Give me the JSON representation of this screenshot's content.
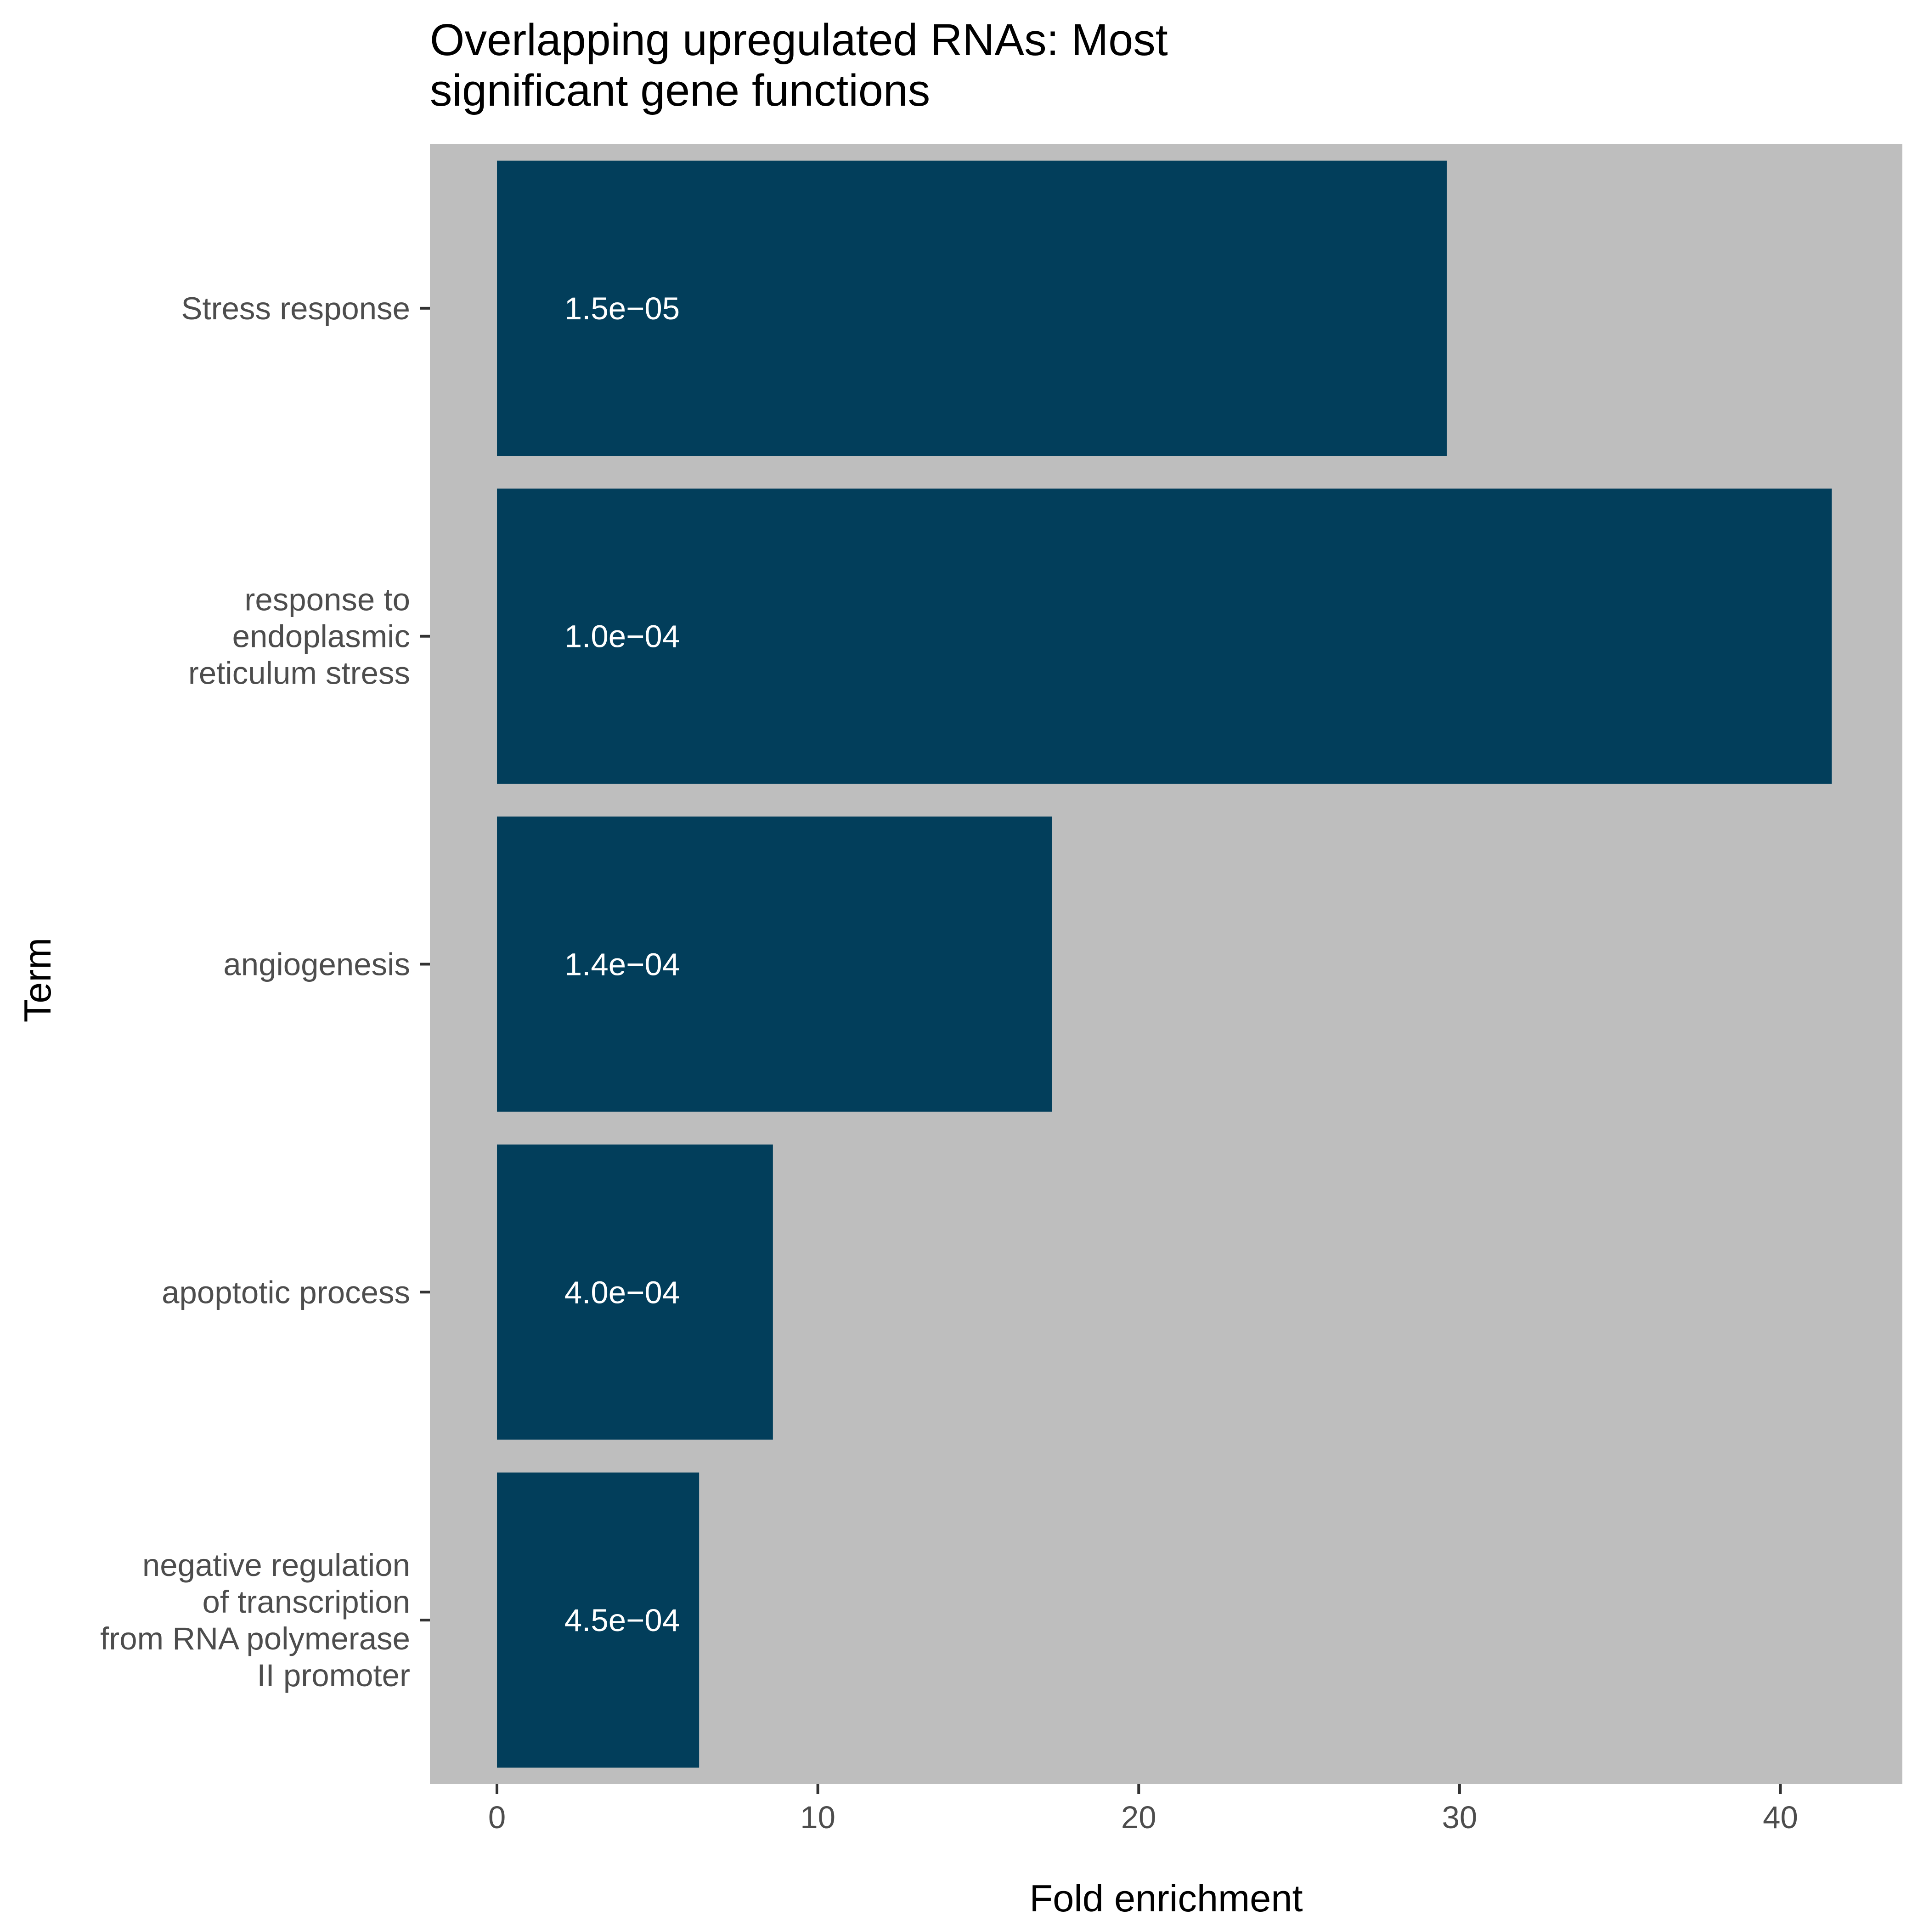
{
  "chart_data": {
    "type": "bar",
    "orientation": "horizontal",
    "title_lines": [
      "Overlapping upregulated RNAs: Most",
      "significant gene functions"
    ],
    "xlabel": "Fold enrichment",
    "ylabel": "Term",
    "xlim": [
      -2.09,
      43.8
    ],
    "x_ticks": [
      0,
      10,
      20,
      30,
      40
    ],
    "categories": [
      {
        "name": "Stress response",
        "lines": [
          "Stress response"
        ]
      },
      {
        "name": "response to endoplasmic reticulum stress",
        "lines": [
          "response to",
          "endoplasmic",
          "reticulum stress"
        ]
      },
      {
        "name": "angiogenesis",
        "lines": [
          "angiogenesis"
        ]
      },
      {
        "name": "apoptotic process",
        "lines": [
          "apoptotic process"
        ]
      },
      {
        "name": "negative regulation of transcription from RNA polymerase II promoter",
        "lines": [
          "negative regulation",
          "of transcription",
          "from RNA polymerase",
          "II promoter"
        ]
      }
    ],
    "values": [
      29.6,
      41.6,
      17.3,
      8.6,
      6.3
    ],
    "bar_labels": [
      "1.5e−05",
      "1.0e−04",
      "1.4e−04",
      "4.0e−04",
      "4.5e−04"
    ],
    "label_x_value": 3.9,
    "grid": false,
    "legend": "none",
    "colors": {
      "bar": "#023e5b",
      "panel": "#bebebe",
      "bar_label": "#ffffff",
      "axis_text": "#4d4d4d",
      "title": "#000000"
    }
  }
}
